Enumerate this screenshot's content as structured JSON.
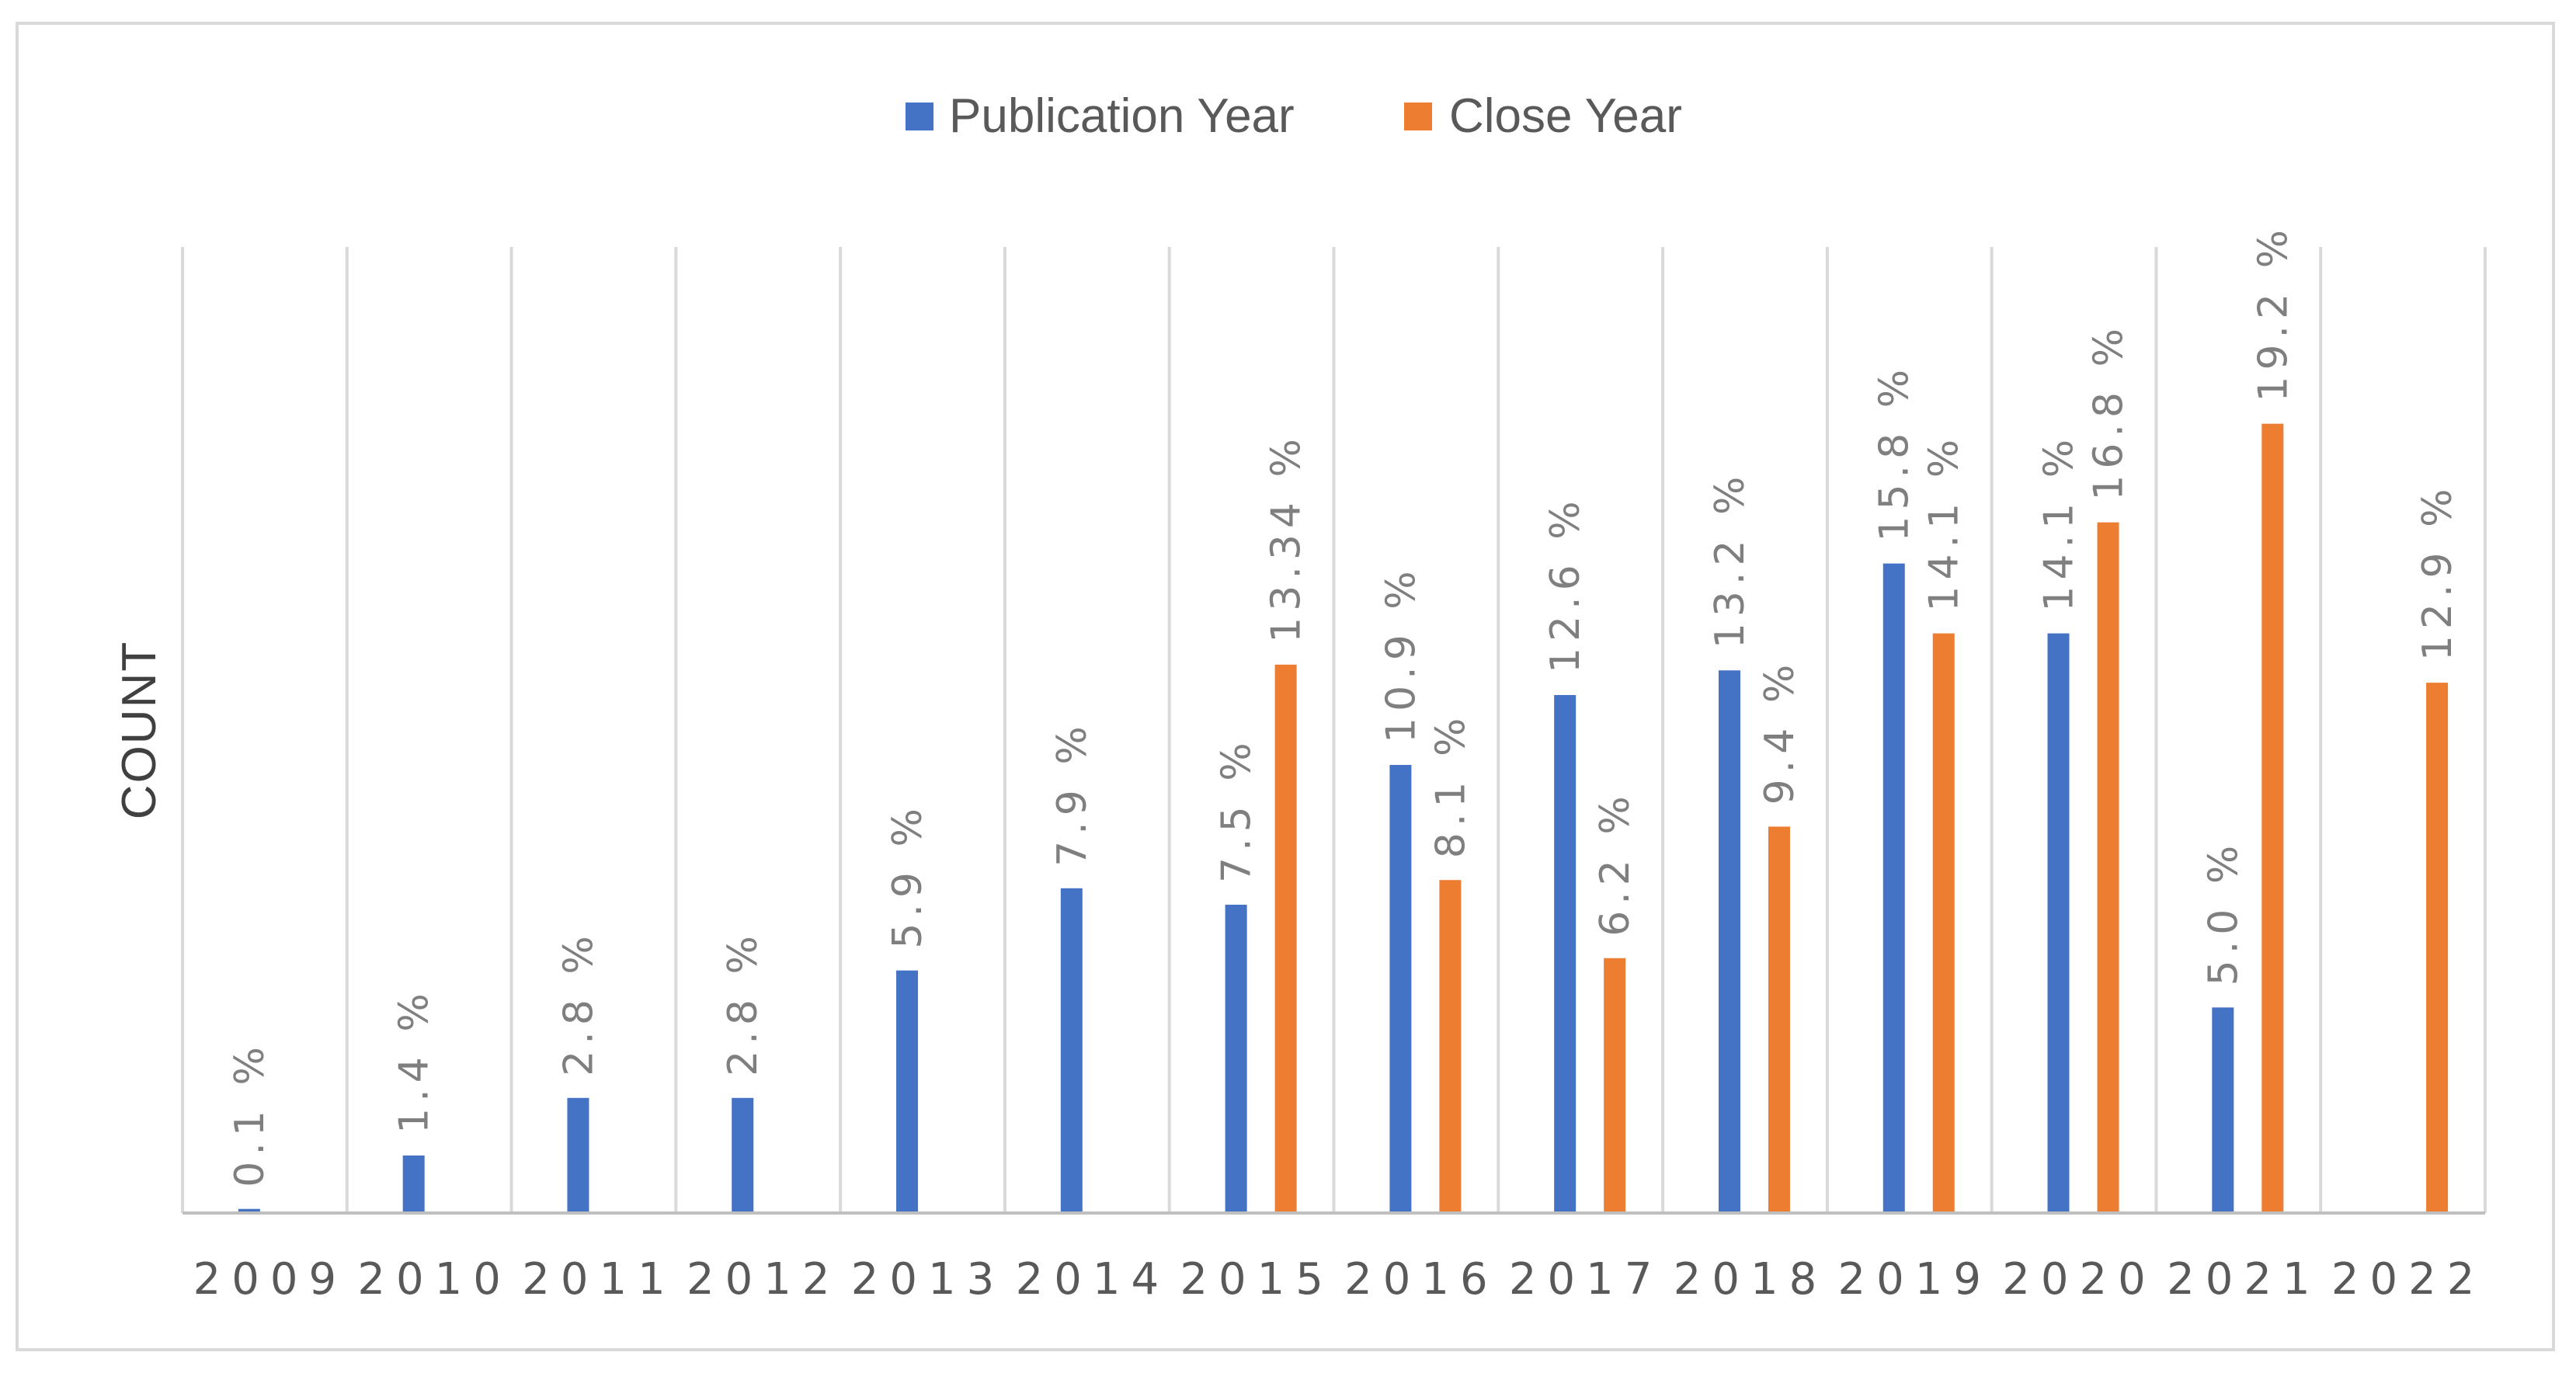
{
  "chart_data": {
    "type": "bar",
    "title": "",
    "xlabel": "",
    "ylabel": "COUNT",
    "categories": [
      "2009",
      "2010",
      "2011",
      "2012",
      "2013",
      "2014",
      "2015",
      "2016",
      "2017",
      "2018",
      "2019",
      "2020",
      "2021",
      "2022"
    ],
    "series": [
      {
        "name": "Publication Year",
        "color": "#4472C4",
        "values": [
          0.1,
          1.4,
          2.8,
          2.8,
          5.9,
          7.9,
          7.5,
          10.9,
          12.6,
          13.2,
          15.8,
          14.1,
          5.0,
          null
        ],
        "labels": [
          "0.1 %",
          "1.4 %",
          "2.8 %",
          "2.8 %",
          "5.9 %",
          "7.9 %",
          "7.5 %",
          "10.9 %",
          "12.6 %",
          "13.2 %",
          "15.8 %",
          "14.1 %",
          "5.0 %",
          null
        ]
      },
      {
        "name": "Close Year",
        "color": "#ED7D31",
        "values": [
          null,
          null,
          null,
          null,
          null,
          null,
          13.34,
          8.1,
          6.2,
          9.4,
          14.1,
          16.8,
          19.2,
          12.9
        ],
        "labels": [
          null,
          null,
          null,
          null,
          null,
          null,
          "13.34 %",
          "8.1 %",
          "6.2 %",
          "9.4 %",
          "14.1 %",
          "16.8 %",
          "19.2 %",
          "12.9 %"
        ]
      }
    ],
    "legend_position": "top",
    "grid": "vertical category separators",
    "ylim": [
      0,
      23.5
    ]
  }
}
